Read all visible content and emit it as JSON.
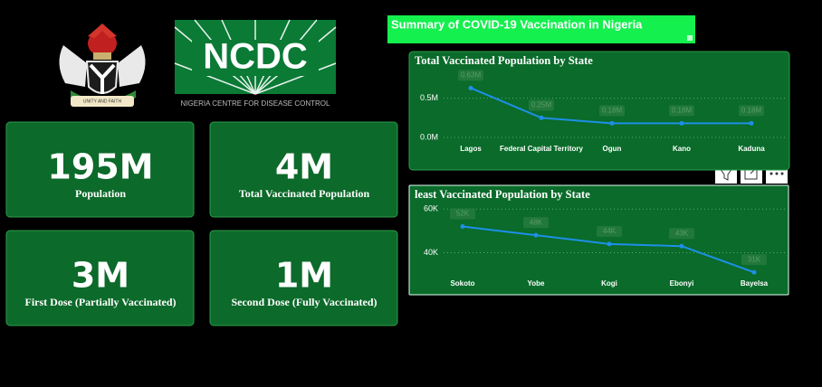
{
  "header": {
    "title": "Summary of COVID-19 Vaccination in Nigeria",
    "logo_text": "NCDC",
    "logo_subtitle": "NIGERIA CENTRE FOR DISEASE CONTROL",
    "motto": "UNITY AND FAITH"
  },
  "kpis": [
    {
      "value": "195M",
      "label": "Population"
    },
    {
      "value": "4M",
      "label": "Total Vaccinated Population"
    },
    {
      "value": "3M",
      "label": "First Dose (Partially Vaccinated)"
    },
    {
      "value": "1M",
      "label": "Second Dose (Fully Vaccinated)"
    }
  ],
  "chart_data": [
    {
      "type": "line",
      "title": "Total Vaccinated Population by State",
      "categories": [
        "Lagos",
        "Federal Capital Territory",
        "Ogun",
        "Kano",
        "Kaduna"
      ],
      "values": [
        0.63,
        0.25,
        0.18,
        0.18,
        0.18
      ],
      "value_labels": [
        "0.63M",
        "0.25M",
        "0.18M",
        "0.18M",
        "0.18M"
      ],
      "color": "#1e8fe8",
      "ylim": [
        0,
        0.83
      ],
      "yticks": [
        {
          "value": 0,
          "label": "0.0M"
        },
        {
          "value": 0.5,
          "label": "0.5M"
        }
      ],
      "grid": true
    },
    {
      "type": "line",
      "title": "least Vaccinated Population by State",
      "categories": [
        "Sokoto",
        "Yobe",
        "Kogi",
        "Ebonyi",
        "Bayelsa"
      ],
      "values": [
        52000,
        48000,
        44000,
        43000,
        31000
      ],
      "value_labels": [
        "52K",
        "48K",
        "44K",
        "43K",
        "31K"
      ],
      "color": "#1e8fe8",
      "ylim": [
        29000,
        63000
      ],
      "yticks": [
        {
          "value": 40000,
          "label": "40K"
        },
        {
          "value": 60000,
          "label": "60K"
        }
      ],
      "grid": true
    }
  ]
}
